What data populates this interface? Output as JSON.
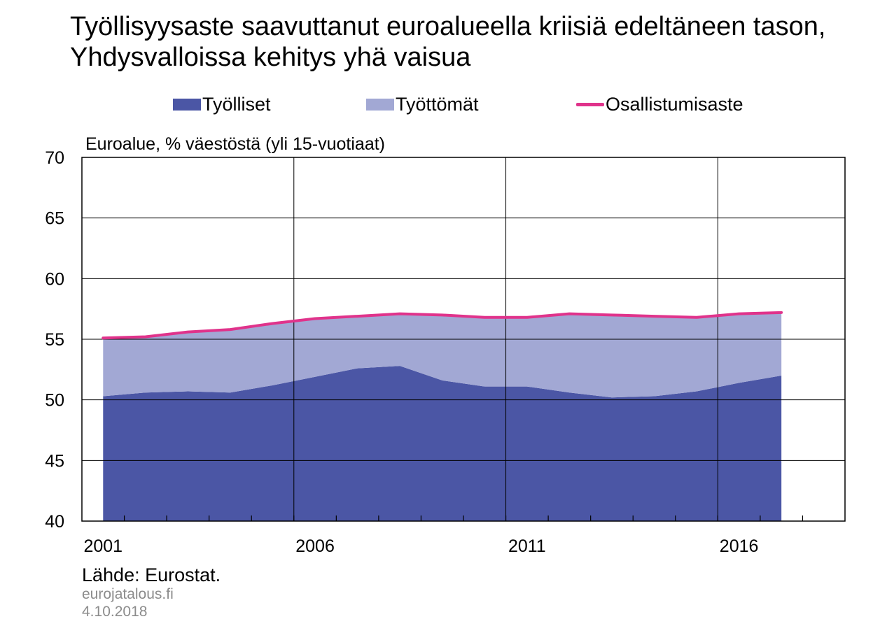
{
  "title": "Työllisyysaste saavuttanut euroalueella kriisiä edeltäneen tason, Yhdysvalloissa kehitys yhä vaisua",
  "subtitle": "Euroalue, % väestöstä (yli 15-vuotiaat)",
  "source": "Lähde: Eurostat.",
  "site": "eurojatalous.fi",
  "date": "4.10.2018",
  "legend": [
    {
      "label": "Työlliset",
      "kind": "box",
      "color": "#4b56a5"
    },
    {
      "label": "Työttömät",
      "kind": "box",
      "color": "#a2a8d4"
    },
    {
      "label": "Osallistumisaste",
      "kind": "line",
      "color": "#e0338b"
    }
  ],
  "chart_data": {
    "type": "area",
    "title": "Työllisyysaste saavuttanut euroalueella kriisiä edeltäneen tason, Yhdysvalloissa kehitys yhä vaisua",
    "ylabel": "Euroalue, % väestöstä (yli 15-vuotiaat)",
    "ylim": [
      40,
      70
    ],
    "yticks": [
      40,
      45,
      50,
      55,
      60,
      65,
      70
    ],
    "xlim": [
      2000.5,
      2018.5
    ],
    "xticks": [
      2001,
      2006,
      2011,
      2016
    ],
    "x": [
      2001,
      2002,
      2003,
      2004,
      2005,
      2006,
      2007,
      2008,
      2009,
      2010,
      2011,
      2012,
      2013,
      2014,
      2015,
      2016,
      2017
    ],
    "grid": true,
    "legend_position": "top",
    "series": [
      {
        "name": "Työlliset",
        "kind": "area",
        "color": "#4b56a5",
        "values": [
          50.3,
          50.6,
          50.7,
          50.6,
          51.2,
          51.9,
          52.6,
          52.8,
          51.6,
          51.1,
          51.1,
          50.6,
          50.2,
          50.3,
          50.7,
          51.4,
          52.0
        ]
      },
      {
        "name": "Työttömät",
        "kind": "stacked-area",
        "color": "#a2a8d4",
        "values": [
          4.8,
          4.6,
          4.9,
          5.2,
          5.1,
          4.8,
          4.3,
          4.3,
          5.4,
          5.7,
          5.7,
          6.5,
          6.8,
          6.6,
          6.1,
          5.7,
          5.2
        ]
      },
      {
        "name": "Osallistumisaste",
        "kind": "line",
        "color": "#e0338b",
        "values": [
          55.1,
          55.2,
          55.6,
          55.8,
          56.3,
          56.7,
          56.9,
          57.1,
          57.0,
          56.8,
          56.8,
          57.1,
          57.0,
          56.9,
          56.8,
          57.1,
          57.2
        ]
      }
    ]
  }
}
